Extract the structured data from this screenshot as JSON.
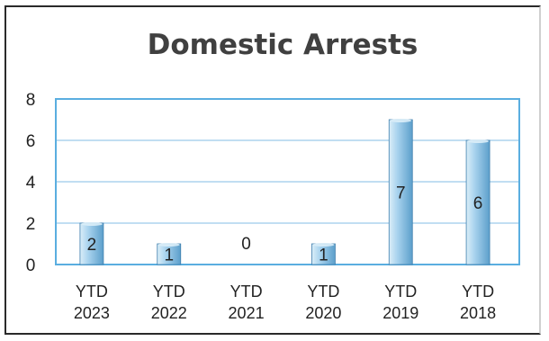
{
  "chart_data": {
    "type": "bar",
    "title": "Domestic Arrests",
    "categories": [
      [
        "YTD",
        "2023"
      ],
      [
        "YTD",
        "2022"
      ],
      [
        "YTD",
        "2021"
      ],
      [
        "YTD",
        "2020"
      ],
      [
        "YTD",
        "2019"
      ],
      [
        "YTD",
        "2018"
      ]
    ],
    "values": [
      2,
      1,
      0,
      1,
      7,
      6
    ],
    "data_labels": [
      "2",
      "1",
      "0",
      "1",
      "7",
      "6"
    ],
    "ylim": [
      0,
      8
    ],
    "yticks": [
      0,
      2,
      4,
      6,
      8
    ],
    "grid": true,
    "legend": "none",
    "colors": {
      "bar_light": "#dbeef8",
      "bar_mid": "#a9d3ee",
      "bar_dark": "#5c9fcb",
      "bar_edge": "#3f7fae",
      "grid": "#9cc9e9",
      "plot_border": "#5aaee0"
    }
  }
}
